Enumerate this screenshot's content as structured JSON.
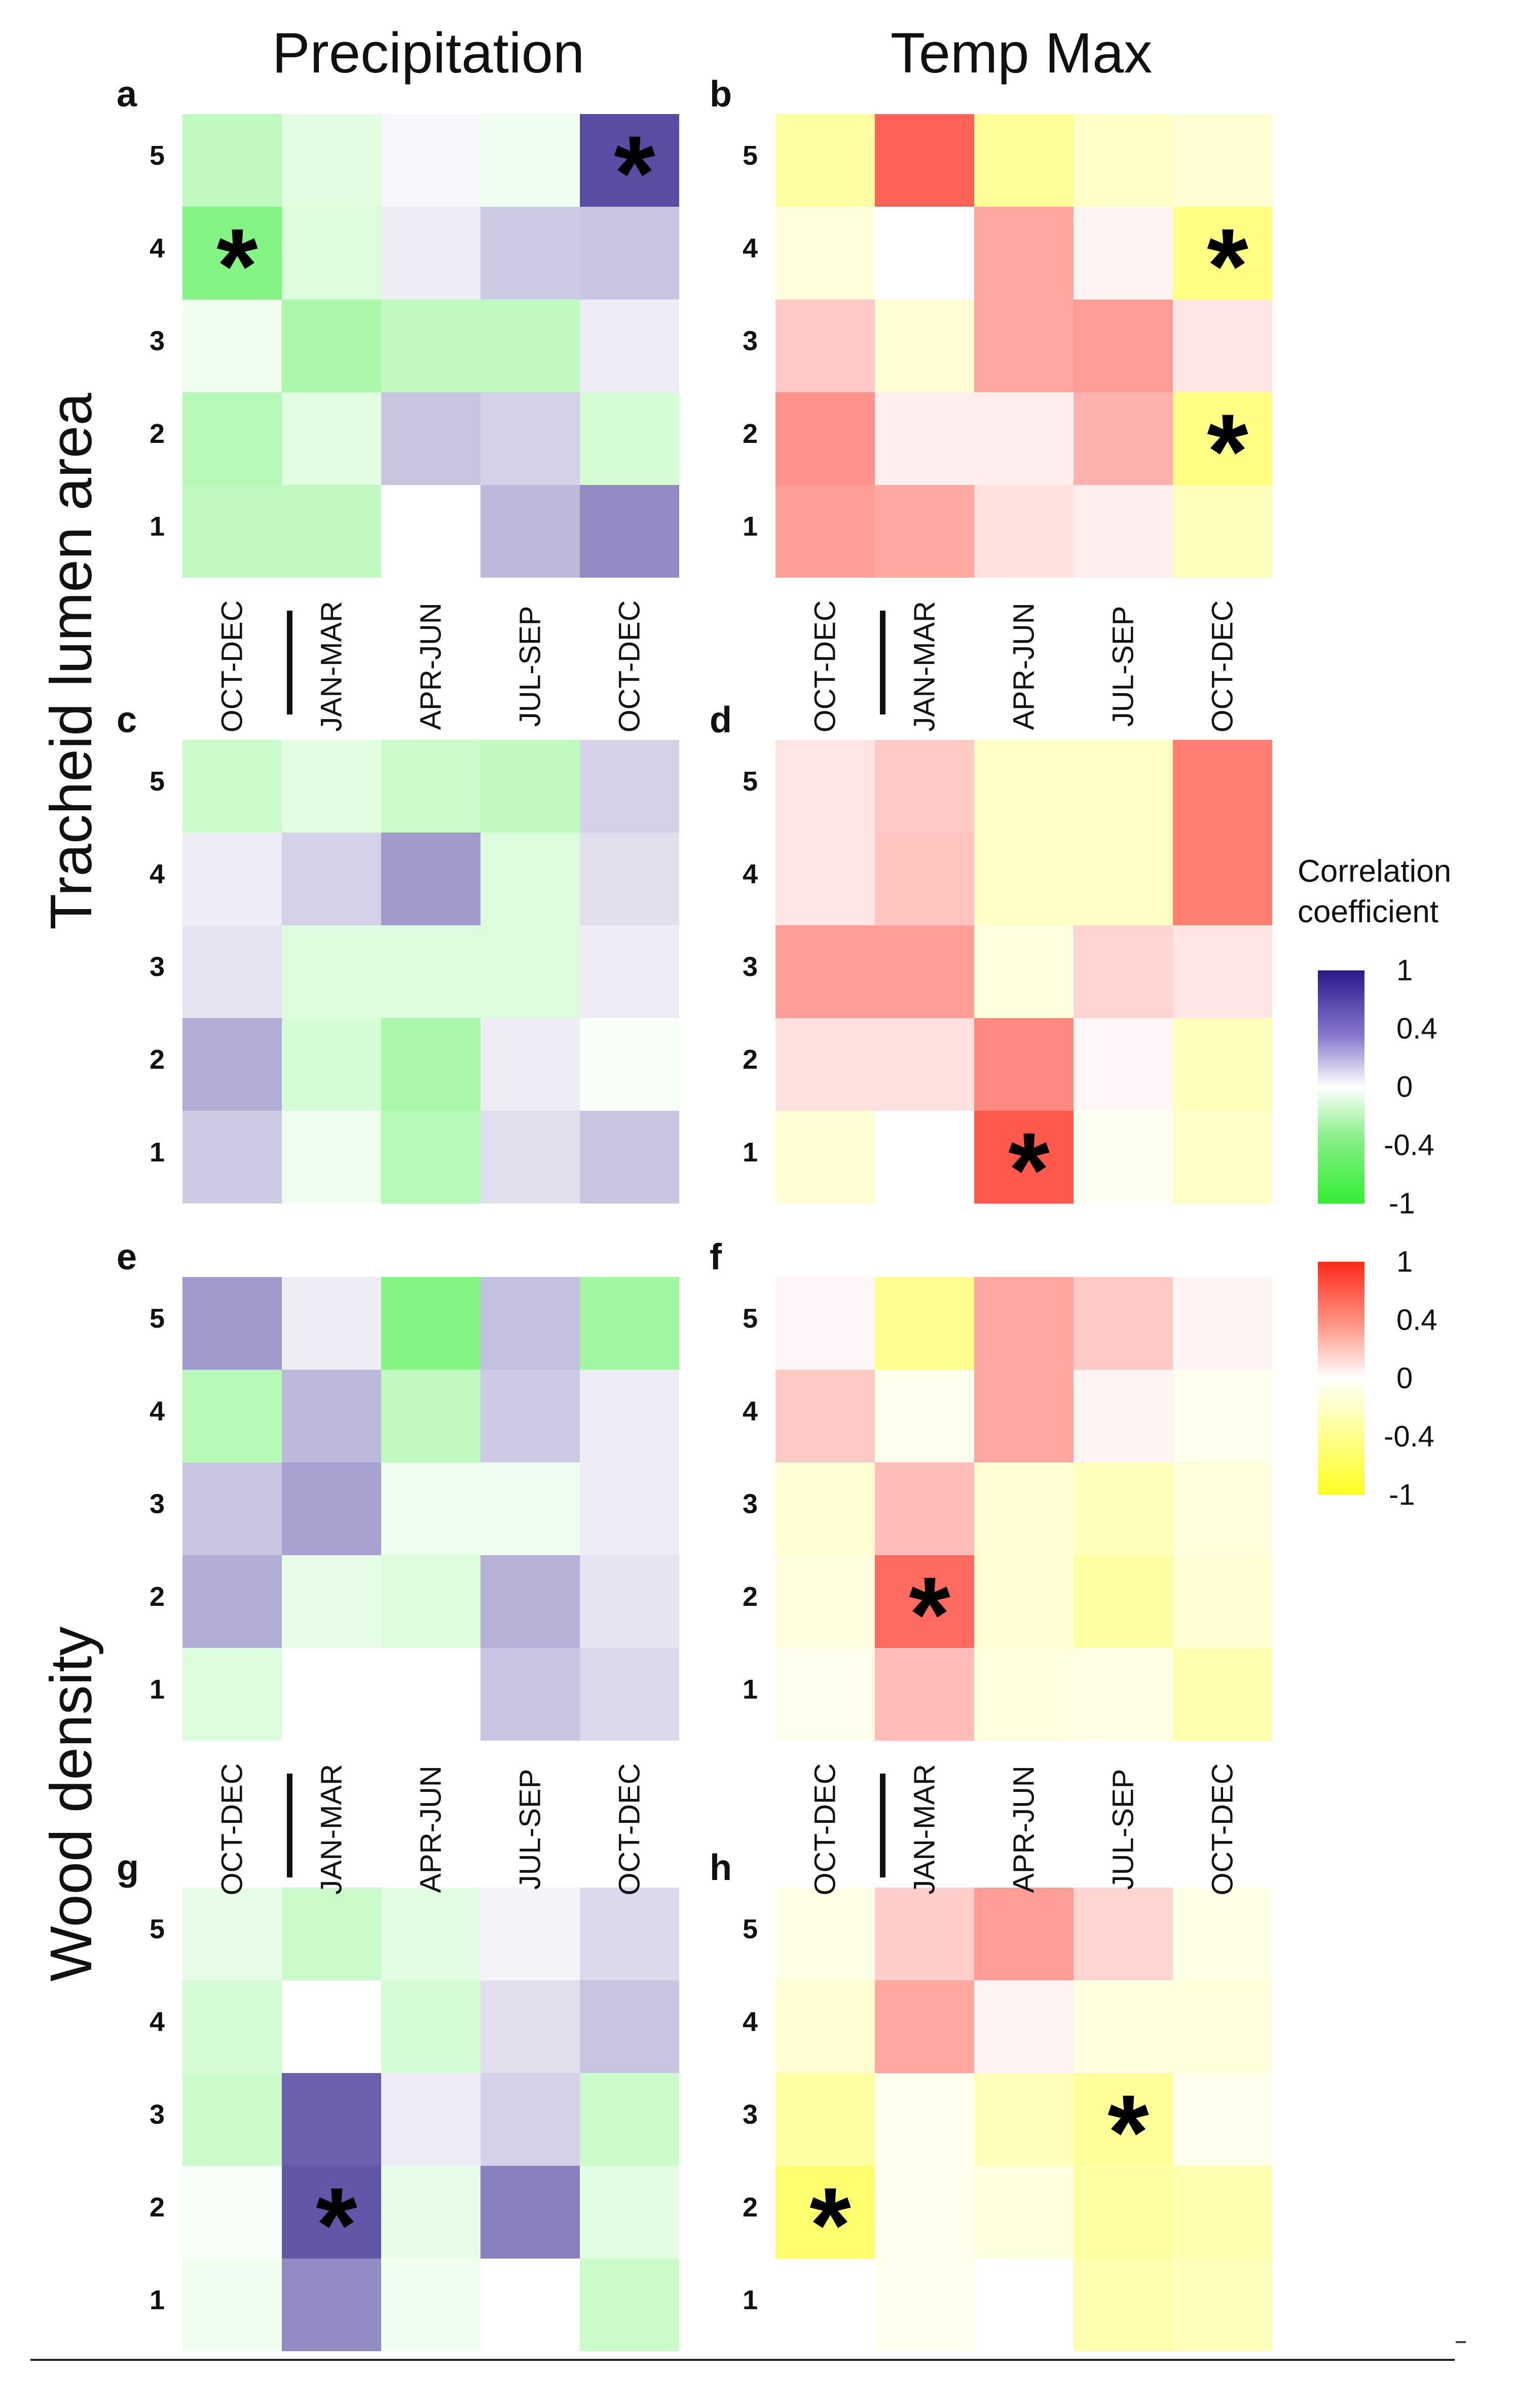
{
  "column_titles": [
    "Precipitation",
    "Temp Max"
  ],
  "row_titles": [
    "Tracheid lumen area",
    "Wood density"
  ],
  "legend": {
    "title_line1": "Correlation",
    "title_line2": "coefficient",
    "scale1_ticks": [
      "1",
      "0.4",
      "0",
      "-0.4",
      "-1"
    ],
    "scale2_ticks": [
      "1",
      "0.4",
      "0",
      "-0.4",
      "-1"
    ]
  },
  "chart_data": {
    "type": "heatmap",
    "x_categories": [
      "OCT-DEC",
      "JAN-MAR",
      "APR-JUN",
      "JUL-SEP",
      "OCT-DEC"
    ],
    "y_categories": [
      "1",
      "2",
      "3",
      "4",
      "5"
    ],
    "value_range": [
      -1,
      1
    ],
    "color_scales": {
      "precipitation": {
        "low": "#33ee33",
        "mid": "#ffffff",
        "high": "#2a1a8a"
      },
      "temp_max": {
        "low": "#ffff22",
        "mid": "#ffffff",
        "high": "#ff2a1a"
      }
    },
    "panels": [
      {
        "label": "a",
        "variable": "Precipitation",
        "scale": "precipitation",
        "values": [
          [
            -0.25,
            -0.25,
            0,
            0.25,
            0.45
          ],
          [
            -0.3,
            -0.1,
            0.2,
            0.15,
            -0.15
          ],
          [
            -0.05,
            -0.35,
            -0.25,
            -0.25,
            0.05
          ],
          [
            -0.55,
            -0.12,
            0.05,
            0.18,
            0.2
          ],
          [
            -0.25,
            -0.1,
            0.02,
            -0.05,
            0.75
          ]
        ],
        "stars": [
          [
            3,
            0
          ],
          [
            4,
            4
          ]
        ]
      },
      {
        "label": "b",
        "variable": "Temp Max",
        "scale": "temp_max",
        "values": [
          [
            0.4,
            0.35,
            0.1,
            0.05,
            -0.25
          ],
          [
            0.45,
            0.05,
            0.05,
            0.3,
            -0.5
          ],
          [
            0.2,
            -0.15,
            0.35,
            0.4,
            0.08
          ],
          [
            -0.12,
            0,
            0.35,
            0.03,
            -0.5
          ],
          [
            -0.35,
            0.7,
            -0.4,
            -0.2,
            -0.15
          ]
        ],
        "stars": [
          [
            1,
            4
          ],
          [
            3,
            4
          ]
        ]
      },
      {
        "label": "c",
        "variable": "Precipitation",
        "scale": "precipitation",
        "values": [
          [
            0.18,
            -0.05,
            -0.3,
            0.1,
            0.2
          ],
          [
            0.3,
            -0.15,
            -0.35,
            0.05,
            -0.02
          ],
          [
            0.08,
            -0.12,
            -0.12,
            -0.12,
            0.05
          ],
          [
            0.05,
            0.15,
            0.38,
            -0.12,
            0.1
          ],
          [
            -0.2,
            -0.1,
            -0.2,
            -0.25,
            0.15
          ]
        ],
        "stars": []
      },
      {
        "label": "d",
        "variable": "Temp Max",
        "scale": "temp_max",
        "values": [
          [
            -0.15,
            0,
            0.75,
            -0.03,
            -0.2
          ],
          [
            0.1,
            0.1,
            0.5,
            0.02,
            -0.25
          ],
          [
            0.4,
            0.4,
            -0.1,
            0.15,
            0.08
          ],
          [
            0.08,
            0.22,
            -0.2,
            -0.2,
            0.55
          ],
          [
            0.08,
            0.2,
            -0.2,
            -0.2,
            0.55
          ]
        ],
        "stars": [
          [
            0,
            2
          ]
        ]
      },
      {
        "label": "e",
        "variable": "Precipitation",
        "scale": "precipitation",
        "values": [
          [
            -0.12,
            0,
            0,
            0.2,
            0.12
          ],
          [
            0.3,
            -0.08,
            -0.12,
            0.28,
            0.08
          ],
          [
            0.2,
            0.35,
            -0.05,
            -0.05,
            0.05
          ],
          [
            -0.3,
            0.25,
            -0.25,
            0.18,
            0.05
          ],
          [
            0.38,
            0.05,
            -0.55,
            0.22,
            -0.4
          ]
        ],
        "stars": []
      },
      {
        "label": "f",
        "variable": "Temp Max",
        "scale": "temp_max",
        "values": [
          [
            -0.05,
            0.25,
            -0.1,
            -0.08,
            -0.3
          ],
          [
            -0.1,
            0.65,
            -0.15,
            -0.35,
            -0.15
          ],
          [
            -0.15,
            0.25,
            -0.15,
            -0.25,
            -0.12
          ],
          [
            0.2,
            -0.05,
            0.35,
            0.03,
            -0.05
          ],
          [
            0.02,
            -0.45,
            0.35,
            0.2,
            0.03
          ]
        ],
        "stars": [
          [
            1,
            1
          ]
        ]
      },
      {
        "label": "g",
        "variable": "Precipitation",
        "scale": "precipitation",
        "values": [
          [
            -0.05,
            0.45,
            -0.05,
            0,
            -0.2
          ],
          [
            -0.02,
            0.7,
            -0.08,
            0.5,
            -0.1
          ],
          [
            -0.2,
            0.65,
            0.05,
            0.15,
            -0.2
          ],
          [
            -0.15,
            0,
            -0.15,
            0.1,
            0.2
          ],
          [
            -0.08,
            -0.2,
            -0.1,
            0.03,
            0.12
          ]
        ],
        "stars": [
          [
            1,
            1
          ]
        ]
      },
      {
        "label": "h",
        "variable": "Temp Max",
        "scale": "temp_max",
        "values": [
          [
            0,
            -0.05,
            0,
            -0.3,
            -0.25
          ],
          [
            -0.6,
            -0.05,
            -0.1,
            -0.35,
            -0.3
          ],
          [
            -0.35,
            -0.05,
            -0.25,
            -0.4,
            -0.05
          ],
          [
            -0.15,
            0.35,
            0.03,
            -0.1,
            -0.12
          ],
          [
            -0.08,
            0.18,
            0.4,
            0.15,
            -0.08
          ]
        ],
        "stars": [
          [
            1,
            0
          ],
          [
            2,
            3
          ]
        ]
      }
    ]
  }
}
